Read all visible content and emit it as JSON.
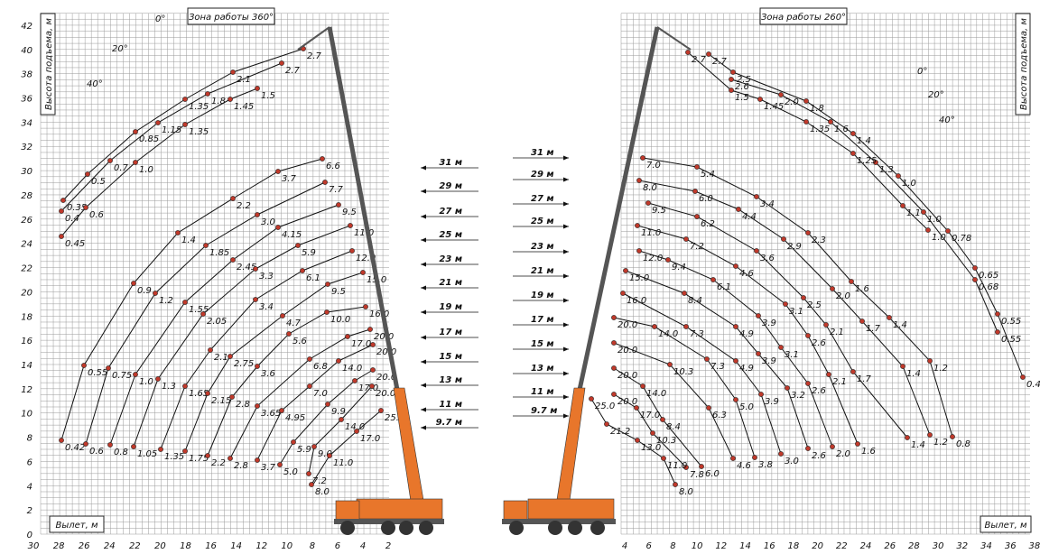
{
  "left": {
    "title": "Зона работы 360°",
    "y_label": "Высота подъема, м",
    "x_label": "Вылет, м",
    "yticks": [
      0,
      2,
      4,
      6,
      8,
      10,
      12,
      14,
      16,
      18,
      20,
      22,
      24,
      26,
      28,
      30,
      32,
      34,
      36,
      38,
      40,
      42
    ],
    "xticks": [
      30,
      28,
      26,
      24,
      22,
      20,
      18,
      16,
      14,
      12,
      10,
      8,
      6,
      4,
      2
    ],
    "angles": [
      "0°",
      "20°",
      "40°"
    ],
    "boom_lengths": [
      "31 м",
      "29 м",
      "27 м",
      "25 м",
      "23 м",
      "21 м",
      "19 м",
      "17 м",
      "15 м",
      "13 м",
      "11 м",
      "9.7 м"
    ],
    "jib_curves": [
      [
        "2.7",
        "2.1",
        "1.35",
        "0.85",
        "0.5",
        "0.35"
      ],
      [
        "2.7",
        "1.8",
        "1.15",
        "0.7",
        "0.4"
      ],
      [
        "1.5",
        "1.45",
        "1.35",
        "1.0",
        "0.6",
        "0.45"
      ]
    ],
    "curves": [
      [
        "6.6",
        "3.7",
        "2.2",
        "1.4",
        "0.9",
        "0.55",
        "0.42"
      ],
      [
        "7.7",
        "3.0",
        "1.85",
        "1.2",
        "0.75",
        "0.6"
      ],
      [
        "9.5",
        "4.15",
        "2.45",
        "1.55",
        "1.0",
        "0.8"
      ],
      [
        "11.0",
        "5.9",
        "3.3",
        "2.05",
        "1.3",
        "1.05"
      ],
      [
        "12.0",
        "6.1",
        "3.4",
        "2.1",
        "1.65",
        "1.35"
      ],
      [
        "15.0",
        "9.5",
        "4.7",
        "2.75",
        "2.15",
        "1.75"
      ],
      [
        "16.0",
        "10.0",
        "5.6",
        "3.6",
        "2.8",
        "2.2"
      ],
      [
        "20.0",
        "17.0",
        "6.8",
        "3.65",
        "2.8"
      ],
      [
        "20.0",
        "14.0",
        "7.0",
        "4.95",
        "3.7"
      ],
      [
        "20.0",
        "17.0",
        "9.9",
        "5.9",
        "5.0"
      ],
      [
        "20.0",
        "14.0",
        "9.0",
        "7.2"
      ],
      [
        "25.0",
        "17.0",
        "11.0",
        "8.0"
      ]
    ]
  },
  "right": {
    "title": "Зона работы 260°",
    "y_label": "Высота подъема, м",
    "x_label": "Вылет, м",
    "xticks": [
      4,
      6,
      8,
      10,
      12,
      14,
      16,
      18,
      20,
      22,
      24,
      26,
      28,
      30,
      32,
      34,
      36,
      38
    ],
    "angles": [
      "0°",
      "20°",
      "40°"
    ],
    "boom_lengths": [
      "31 м",
      "29 м",
      "27 м",
      "25 м",
      "23 м",
      "21 м",
      "19 м",
      "17 м",
      "15 м",
      "13 м",
      "11 м",
      "9.7 м"
    ],
    "jib_curves": [
      [
        "2.7",
        "2.5",
        "1.8",
        "1.4",
        "1.0",
        "0.78",
        "0.65",
        "0.55",
        "0.44"
      ],
      [
        "2.6",
        "2.0",
        "1.6",
        "1.3",
        "1.0",
        "0.68",
        "0.55"
      ],
      [
        "2.7",
        "1.5",
        "1.45",
        "1.35",
        "1.25",
        "1.1",
        "1.0"
      ]
    ],
    "curves": [
      [
        "7.0",
        "5.4",
        "3.4",
        "2.3",
        "1.6",
        "1.4",
        "1.2",
        "0.8"
      ],
      [
        "8.0",
        "6.0",
        "4.4",
        "2.9",
        "2.0",
        "1.7",
        "1.4",
        "1.2"
      ],
      [
        "9.5",
        "6.2",
        "3.6",
        "2.5",
        "2.1",
        "1.7",
        "1.4"
      ],
      [
        "11.0",
        "7.2",
        "4.6",
        "3.1",
        "2.6",
        "2.1",
        "1.6"
      ],
      [
        "12.0",
        "9.4",
        "6.1",
        "3.9",
        "3.1",
        "2.6",
        "2.0"
      ],
      [
        "15.0",
        "8.4",
        "4.9",
        "3.9",
        "3.2",
        "2.6"
      ],
      [
        "16.0",
        "7.3",
        "4.9",
        "3.9",
        "3.0"
      ],
      [
        "20.0",
        "14.0",
        "7.3",
        "5.0",
        "3.8"
      ],
      [
        "20.0",
        "10.3",
        "6.3",
        "4.6"
      ],
      [
        "20.0",
        "14.0",
        "8.4",
        "6.0"
      ],
      [
        "20.0",
        "17.0",
        "10.3",
        "7.8"
      ],
      [
        "25.0",
        "21.2",
        "13.0",
        "11.0",
        "8.0"
      ]
    ]
  }
}
